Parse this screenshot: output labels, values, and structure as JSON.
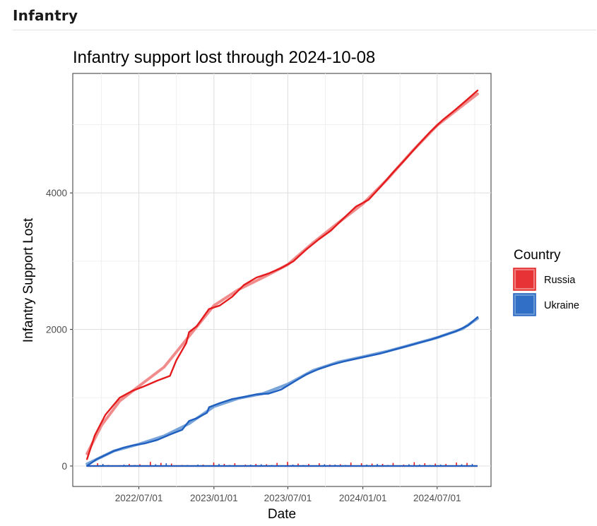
{
  "section": {
    "heading": "Infantry"
  },
  "chart_data": {
    "type": "line",
    "title": "Infantry support lost through 2024-10-08",
    "xlabel": "Date",
    "ylabel": "Infantry Support Lost",
    "x_ticks": [
      "2022/07/01",
      "2023/01/01",
      "2023/07/01",
      "2024/01/01",
      "2024/07/01"
    ],
    "x_tick_dates": [
      "2022-07-01",
      "2023-01-01",
      "2023-07-01",
      "2024-01-01",
      "2024-07-01"
    ],
    "xlim": [
      "2022-01-20",
      "2024-11-10"
    ],
    "y_ticks": [
      0,
      2000,
      4000
    ],
    "ylim": [
      -300,
      5750
    ],
    "grid": true,
    "legend": {
      "title": "Country",
      "placement": "right"
    },
    "series": [
      {
        "name": "Russia",
        "color": "#e41a1c",
        "smooth_color": "#f08080",
        "cumulative": [
          [
            "2022-02-24",
            100
          ],
          [
            "2022-03-15",
            450
          ],
          [
            "2022-04-10",
            750
          ],
          [
            "2022-05-15",
            1000
          ],
          [
            "2022-06-15",
            1100
          ],
          [
            "2022-07-15",
            1170
          ],
          [
            "2022-08-15",
            1250
          ],
          [
            "2022-09-15",
            1320
          ],
          [
            "2022-10-01",
            1550
          ],
          [
            "2022-10-25",
            1800
          ],
          [
            "2022-11-01",
            1960
          ],
          [
            "2022-11-20",
            2050
          ],
          [
            "2022-12-20",
            2300
          ],
          [
            "2023-01-15",
            2350
          ],
          [
            "2023-02-15",
            2480
          ],
          [
            "2023-03-15",
            2650
          ],
          [
            "2023-04-15",
            2760
          ],
          [
            "2023-05-15",
            2820
          ],
          [
            "2023-06-15",
            2900
          ],
          [
            "2023-07-15",
            3000
          ],
          [
            "2023-08-15",
            3170
          ],
          [
            "2023-09-15",
            3320
          ],
          [
            "2023-10-15",
            3450
          ],
          [
            "2023-11-15",
            3630
          ],
          [
            "2023-12-15",
            3800
          ],
          [
            "2024-01-15",
            3900
          ],
          [
            "2024-02-15",
            4100
          ],
          [
            "2024-03-15",
            4300
          ],
          [
            "2024-04-15",
            4500
          ],
          [
            "2024-05-15",
            4700
          ],
          [
            "2024-06-15",
            4900
          ],
          [
            "2024-07-15",
            5070
          ],
          [
            "2024-08-15",
            5220
          ],
          [
            "2024-09-15",
            5380
          ],
          [
            "2024-10-08",
            5500
          ]
        ],
        "trend": [
          [
            "2022-02-24",
            180
          ],
          [
            "2022-04-01",
            600
          ],
          [
            "2022-05-15",
            950
          ],
          [
            "2022-07-01",
            1170
          ],
          [
            "2022-09-01",
            1450
          ],
          [
            "2022-11-01",
            1900
          ],
          [
            "2023-01-01",
            2350
          ],
          [
            "2023-03-01",
            2580
          ],
          [
            "2023-05-01",
            2760
          ],
          [
            "2023-07-01",
            2950
          ],
          [
            "2023-09-01",
            3270
          ],
          [
            "2023-11-01",
            3560
          ],
          [
            "2024-01-01",
            3840
          ],
          [
            "2024-03-01",
            4200
          ],
          [
            "2024-05-01",
            4610
          ],
          [
            "2024-07-01",
            4990
          ],
          [
            "2024-08-15",
            5200
          ],
          [
            "2024-10-08",
            5450
          ]
        ],
        "daily": [
          20,
          40,
          15,
          10,
          30,
          25,
          60,
          45,
          35,
          15,
          10,
          20,
          50,
          30,
          40,
          20,
          30,
          25,
          45,
          60,
          35,
          30,
          40,
          20,
          25,
          50,
          40,
          35,
          30,
          45,
          20,
          55,
          40,
          35,
          30,
          50,
          45
        ]
      },
      {
        "name": "Ukraine",
        "color": "#1f5fbf",
        "smooth_color": "#6a9ad6",
        "cumulative": [
          [
            "2022-02-24",
            0
          ],
          [
            "2022-03-20",
            100
          ],
          [
            "2022-05-01",
            220
          ],
          [
            "2022-05-25",
            270
          ],
          [
            "2022-06-15",
            300
          ],
          [
            "2022-07-15",
            330
          ],
          [
            "2022-08-15",
            380
          ],
          [
            "2022-09-15",
            460
          ],
          [
            "2022-10-15",
            530
          ],
          [
            "2022-11-01",
            660
          ],
          [
            "2022-11-20",
            700
          ],
          [
            "2022-12-15",
            780
          ],
          [
            "2022-12-20",
            860
          ],
          [
            "2023-01-15",
            920
          ],
          [
            "2023-02-15",
            980
          ],
          [
            "2023-03-15",
            1010
          ],
          [
            "2023-04-15",
            1050
          ],
          [
            "2023-05-15",
            1060
          ],
          [
            "2023-06-15",
            1120
          ],
          [
            "2023-07-15",
            1230
          ],
          [
            "2023-08-15",
            1340
          ],
          [
            "2023-09-15",
            1420
          ],
          [
            "2023-10-15",
            1480
          ],
          [
            "2023-11-15",
            1530
          ],
          [
            "2023-12-15",
            1570
          ],
          [
            "2024-01-15",
            1610
          ],
          [
            "2024-02-15",
            1650
          ],
          [
            "2024-03-15",
            1700
          ],
          [
            "2024-04-15",
            1750
          ],
          [
            "2024-05-15",
            1800
          ],
          [
            "2024-06-15",
            1850
          ],
          [
            "2024-07-15",
            1910
          ],
          [
            "2024-08-15",
            1970
          ],
          [
            "2024-09-15",
            2060
          ],
          [
            "2024-10-08",
            2180
          ]
        ],
        "trend": [
          [
            "2022-02-24",
            30
          ],
          [
            "2022-05-01",
            220
          ],
          [
            "2022-07-01",
            320
          ],
          [
            "2022-09-01",
            440
          ],
          [
            "2022-11-01",
            620
          ],
          [
            "2023-01-01",
            870
          ],
          [
            "2023-03-01",
            990
          ],
          [
            "2023-05-01",
            1060
          ],
          [
            "2023-07-01",
            1200
          ],
          [
            "2023-09-01",
            1400
          ],
          [
            "2023-11-01",
            1520
          ],
          [
            "2024-01-01",
            1600
          ],
          [
            "2024-03-01",
            1680
          ],
          [
            "2024-05-01",
            1780
          ],
          [
            "2024-07-01",
            1880
          ],
          [
            "2024-09-01",
            2010
          ],
          [
            "2024-10-08",
            2160
          ]
        ],
        "daily": [
          10,
          30,
          5,
          20,
          15,
          10,
          25,
          40,
          10,
          15,
          20,
          10,
          30,
          15,
          10,
          20,
          25,
          15,
          10,
          20,
          15,
          10,
          25,
          20,
          15,
          10,
          20,
          30,
          15,
          10,
          25,
          20,
          15,
          20,
          10,
          25,
          30
        ]
      }
    ]
  }
}
